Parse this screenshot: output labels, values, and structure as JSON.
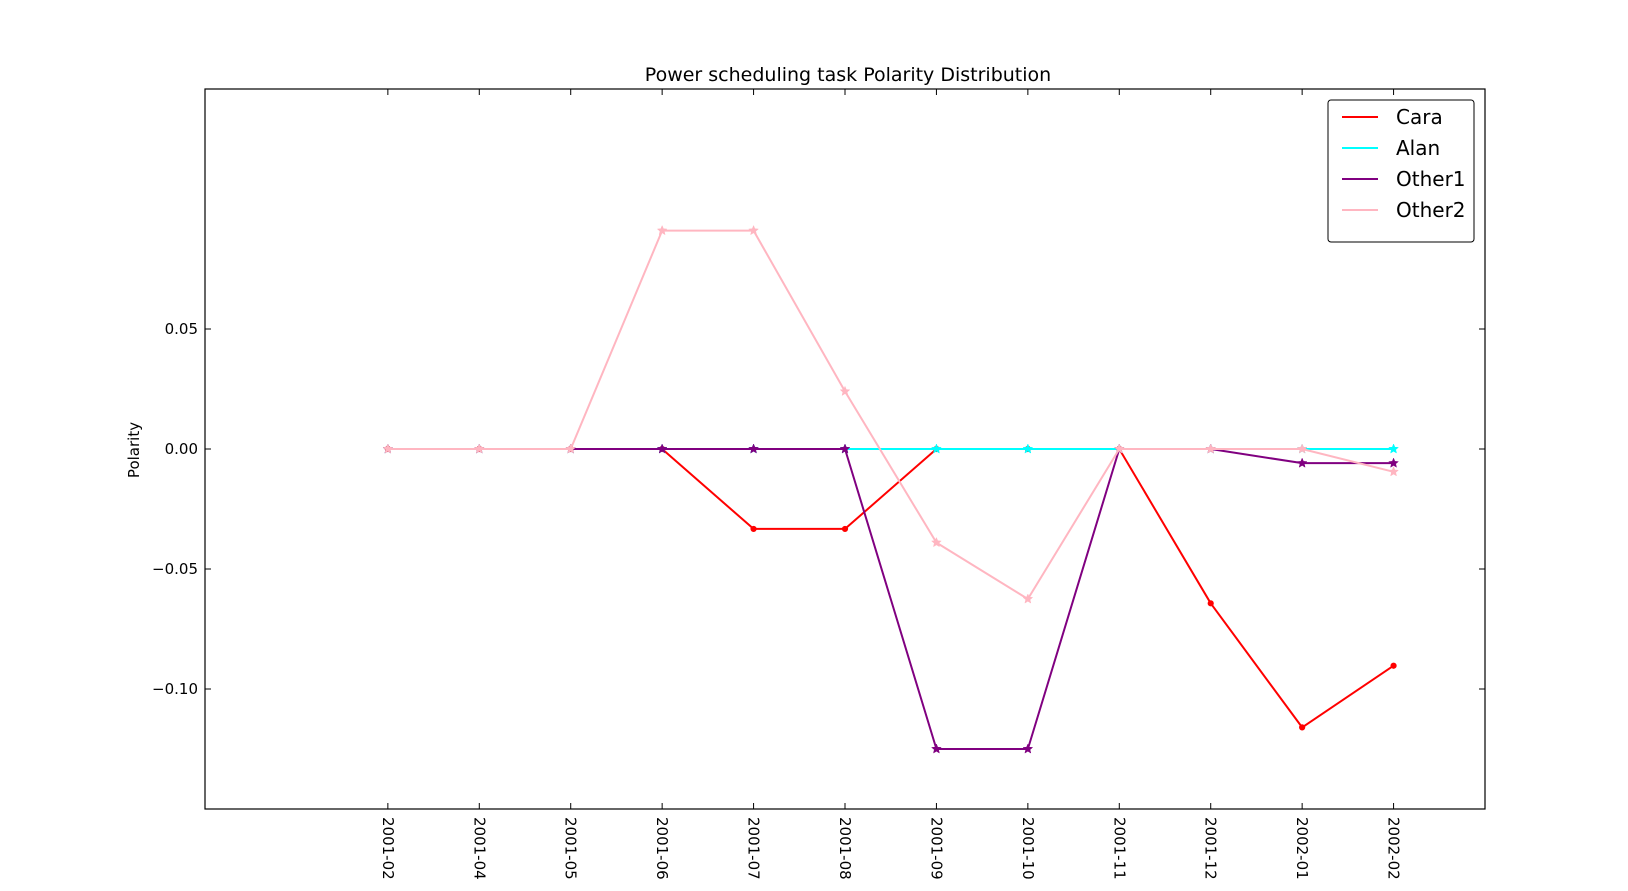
{
  "chart_data": {
    "type": "line",
    "title": "Power scheduling task Polarity Distribution",
    "xlabel": "",
    "ylabel": "Polarity",
    "categories": [
      "2001-02",
      "2001-04",
      "2001-05",
      "2001-06",
      "2001-07",
      "2001-08",
      "2001-09",
      "2001-10",
      "2001-11",
      "2001-12",
      "2002-01",
      "2002-02"
    ],
    "ylim": [
      -0.15,
      0.15
    ],
    "yticks": [
      {
        "value": 0.05,
        "label": "0.05"
      },
      {
        "value": 0.0,
        "label": "0.00"
      },
      {
        "value": -0.05,
        "label": "−0.05"
      },
      {
        "value": -0.1,
        "label": "−0.10"
      }
    ],
    "xlim": [
      -2,
      12
    ],
    "legend_position": "top-right",
    "grid": false,
    "series": [
      {
        "name": "Cara",
        "color": "#ff0000",
        "marker": "dot",
        "values": [
          0,
          0,
          0,
          0,
          -0.0333,
          -0.0333,
          0,
          0,
          0,
          -0.0643,
          -0.116,
          -0.0903
        ]
      },
      {
        "name": "Alan",
        "color": "#00ffff",
        "marker": "star",
        "values": [
          0,
          0,
          0,
          0,
          0,
          0,
          0,
          0,
          0,
          0,
          0,
          0
        ]
      },
      {
        "name": "Other1",
        "color": "#800080",
        "marker": "star",
        "values": [
          0,
          0,
          0,
          0,
          0,
          0,
          -0.125,
          -0.125,
          0,
          0,
          -0.0059,
          -0.0059
        ]
      },
      {
        "name": "Other2",
        "color": "#ffb6c1",
        "marker": "star",
        "values": [
          0,
          0,
          0,
          0.091,
          0.091,
          0.024,
          -0.039,
          -0.0625,
          0,
          0,
          0,
          -0.0095
        ]
      }
    ]
  }
}
